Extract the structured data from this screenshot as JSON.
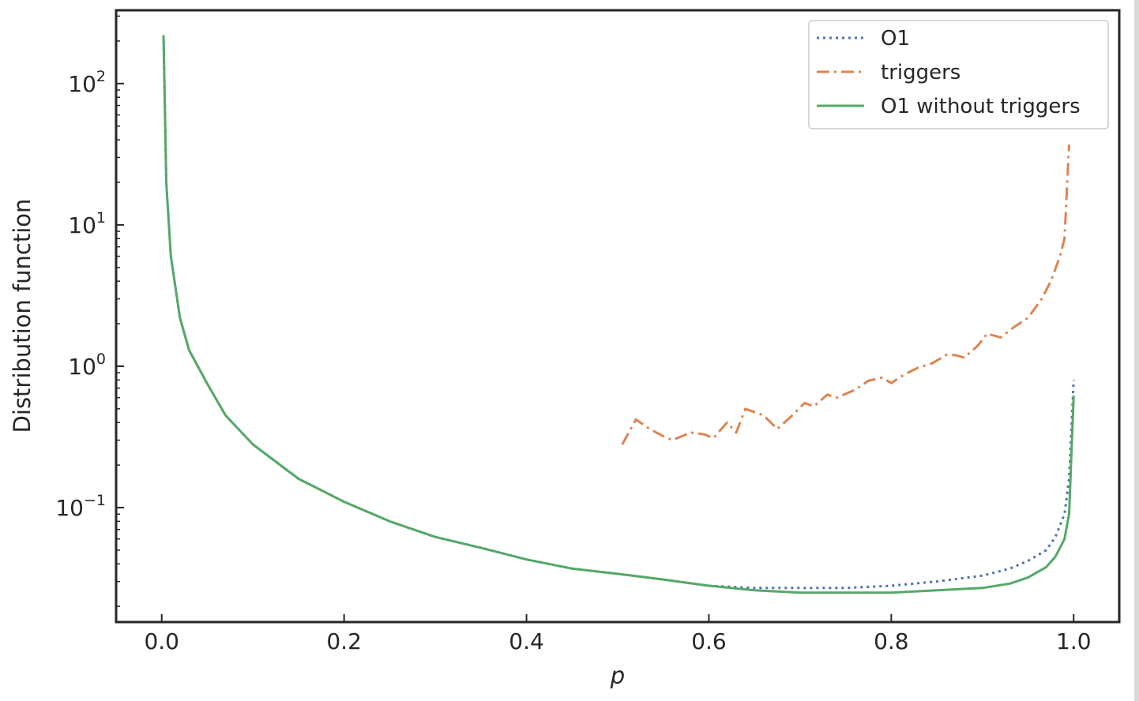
{
  "chart_data": {
    "type": "line",
    "xlabel": "p",
    "ylabel": "Distribution function",
    "xlim": [
      -0.05,
      1.05
    ],
    "ylim": [
      0.0155,
      330
    ],
    "yscale": "log",
    "x_ticks": [
      {
        "value": 0.0,
        "label": "0.0"
      },
      {
        "value": 0.2,
        "label": "0.2"
      },
      {
        "value": 0.4,
        "label": "0.4"
      },
      {
        "value": 0.6,
        "label": "0.6"
      },
      {
        "value": 0.8,
        "label": "0.8"
      },
      {
        "value": 1.0,
        "label": "1.0"
      }
    ],
    "y_ticks": [
      {
        "value": 100,
        "base": "10",
        "exp": "2"
      },
      {
        "value": 10,
        "base": "10",
        "exp": "1"
      },
      {
        "value": 1,
        "base": "10",
        "exp": "0"
      },
      {
        "value": 0.1,
        "base": "10",
        "exp": "−1"
      }
    ],
    "grid": false,
    "legend_position": "top-right",
    "series": [
      {
        "name": "O1",
        "color": "#4c72b0",
        "style": "dotted",
        "x": [
          0.002,
          0.005,
          0.01,
          0.02,
          0.03,
          0.05,
          0.07,
          0.1,
          0.15,
          0.2,
          0.25,
          0.3,
          0.35,
          0.4,
          0.45,
          0.5,
          0.55,
          0.6,
          0.65,
          0.7,
          0.75,
          0.8,
          0.85,
          0.9,
          0.93,
          0.95,
          0.97,
          0.98,
          0.99,
          0.995,
          1.0
        ],
        "y": [
          220,
          20,
          6,
          2.2,
          1.3,
          0.75,
          0.45,
          0.28,
          0.16,
          0.11,
          0.08,
          0.062,
          0.052,
          0.043,
          0.037,
          0.034,
          0.031,
          0.028,
          0.027,
          0.027,
          0.027,
          0.028,
          0.03,
          0.033,
          0.037,
          0.042,
          0.05,
          0.062,
          0.09,
          0.16,
          0.8
        ]
      },
      {
        "name": "triggers",
        "color": "#dd8452",
        "style": "dashdot",
        "x": [
          0.505,
          0.52,
          0.535,
          0.55,
          0.56,
          0.58,
          0.595,
          0.605,
          0.62,
          0.63,
          0.64,
          0.66,
          0.675,
          0.69,
          0.705,
          0.715,
          0.73,
          0.74,
          0.76,
          0.775,
          0.79,
          0.8,
          0.815,
          0.83,
          0.845,
          0.86,
          0.87,
          0.88,
          0.895,
          0.905,
          0.92,
          0.935,
          0.95,
          0.965,
          0.975,
          0.985,
          0.99,
          0.995
        ],
        "y": [
          0.28,
          0.42,
          0.36,
          0.32,
          0.3,
          0.34,
          0.33,
          0.31,
          0.4,
          0.34,
          0.5,
          0.45,
          0.36,
          0.44,
          0.55,
          0.52,
          0.63,
          0.6,
          0.68,
          0.79,
          0.83,
          0.76,
          0.88,
          0.98,
          1.05,
          1.2,
          1.2,
          1.15,
          1.4,
          1.7,
          1.6,
          1.9,
          2.2,
          3.0,
          4.0,
          6.0,
          8.0,
          37
        ]
      },
      {
        "name": "O1 without triggers",
        "color": "#55a868",
        "style": "solid",
        "x": [
          0.002,
          0.005,
          0.01,
          0.02,
          0.03,
          0.05,
          0.07,
          0.1,
          0.15,
          0.2,
          0.25,
          0.3,
          0.35,
          0.4,
          0.45,
          0.5,
          0.55,
          0.6,
          0.65,
          0.7,
          0.75,
          0.8,
          0.85,
          0.9,
          0.93,
          0.95,
          0.97,
          0.98,
          0.99,
          0.995,
          1.0
        ],
        "y": [
          220,
          20,
          6,
          2.2,
          1.3,
          0.75,
          0.45,
          0.28,
          0.16,
          0.11,
          0.08,
          0.062,
          0.052,
          0.043,
          0.037,
          0.034,
          0.031,
          0.028,
          0.026,
          0.025,
          0.025,
          0.025,
          0.026,
          0.027,
          0.029,
          0.032,
          0.038,
          0.045,
          0.06,
          0.09,
          0.62
        ]
      }
    ]
  }
}
